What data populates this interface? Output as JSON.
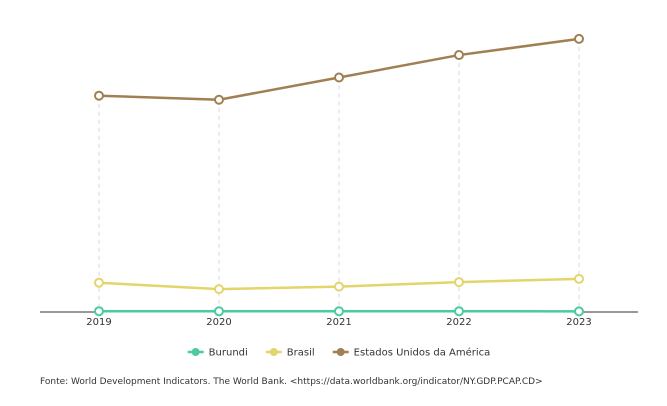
{
  "chart_data": {
    "type": "line",
    "categories": [
      "2019",
      "2020",
      "2021",
      "2022",
      "2023"
    ],
    "series": [
      {
        "name": "Burundi",
        "color": "#4ccaa2",
        "values": [
          236,
          217,
          221,
          238,
          194
        ]
      },
      {
        "name": "Brasil",
        "color": "#e3d56b",
        "values": [
          8876,
          6924,
          7693,
          9064,
          10044
        ]
      },
      {
        "name": "Estados Unidos da América",
        "color": "#a27f52",
        "values": [
          65548,
          64317,
          71056,
          77861,
          82769
        ]
      }
    ],
    "xlabel": "",
    "ylabel": "",
    "ylim": [
      0,
      90000
    ],
    "grid": "vertical dashed at each category",
    "legend_placement": "bottom-center"
  },
  "footer": {
    "source": "Fonte: World Development Indicators. The World Bank. <https://data.worldbank.org/indicator/NY.GDP.PCAP.CD>"
  }
}
